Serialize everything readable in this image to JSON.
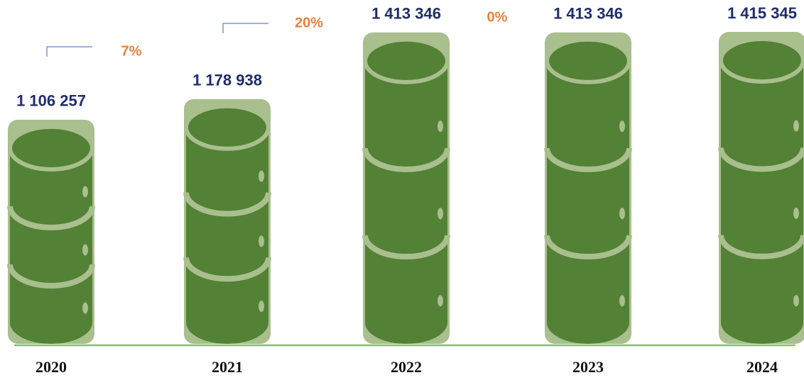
{
  "chart_data": {
    "type": "bar",
    "categories": [
      "2020",
      "2021",
      "2022",
      "2023",
      "2024"
    ],
    "values": [
      1106257,
      1178938,
      1413346,
      1413346,
      1415345
    ],
    "value_labels": [
      "1 106 257",
      "1 178 938",
      "1 413 346",
      "1 413 346",
      "1 415 345"
    ],
    "annotations": [
      "7%",
      "20%",
      "0%"
    ],
    "color": "#a9bf8e"
  }
}
